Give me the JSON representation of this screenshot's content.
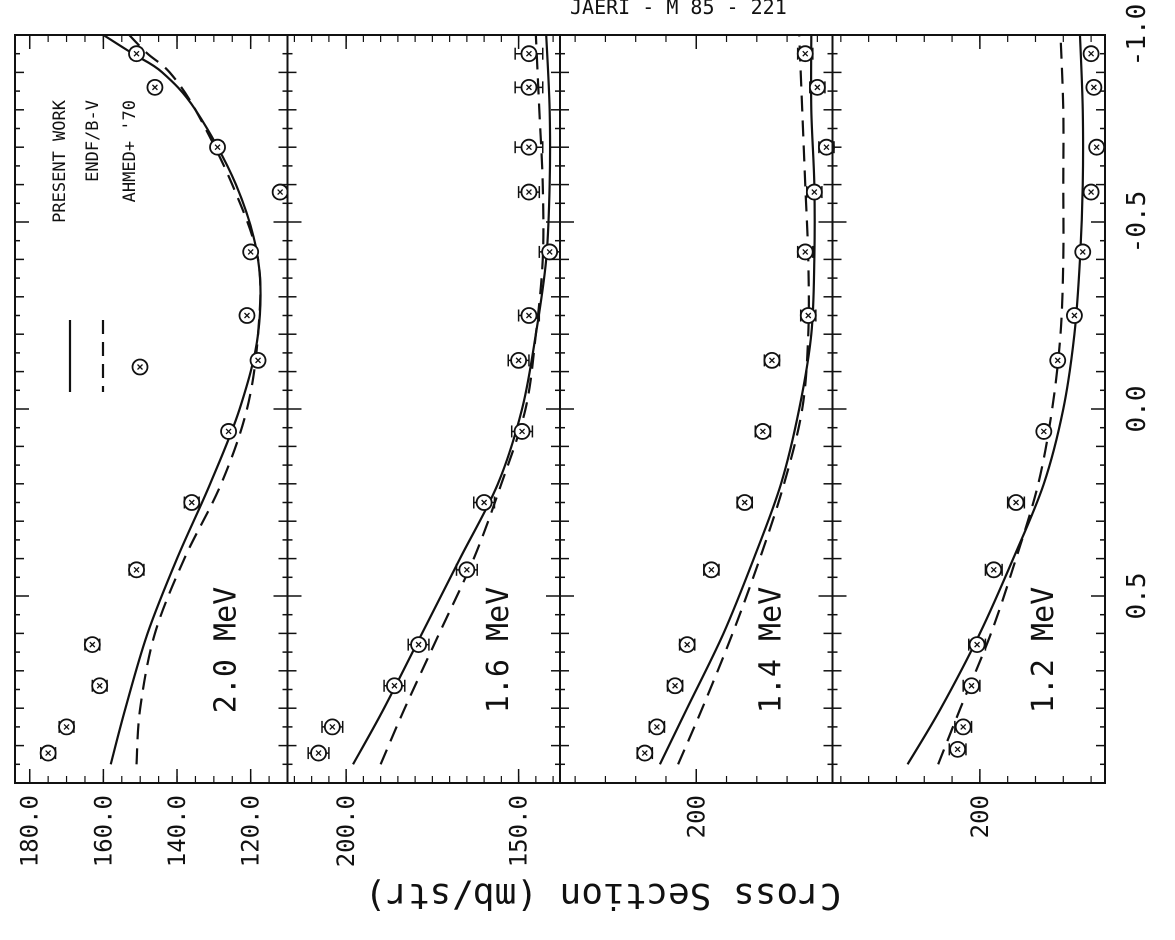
{
  "header": {
    "text": "JAERI - M 85 - 221"
  },
  "figure": {
    "ylabel": "Cross Section (mb/str)",
    "xlabel": "",
    "x_ticks": [
      "-1.0",
      "-0.5",
      "0.0",
      "0.5"
    ],
    "legend": [
      {
        "label": "PRESENT WORK",
        "style": "solid"
      },
      {
        "label": "ENDF/B-V",
        "style": "dashed"
      },
      {
        "label": "AHMED+ '70",
        "style": "marker"
      }
    ],
    "colors": {
      "ink": "#111111",
      "background": "#ffffff"
    }
  },
  "chart_data": [
    {
      "type": "line",
      "panel_label": "2.0 MeV",
      "x_range": [
        -1.0,
        1.0
      ],
      "y_range": [
        110,
        184
      ],
      "y_ticks": [
        "180.0",
        "160.0",
        "140.0",
        "120.0"
      ],
      "series": [
        {
          "name": "PRESENT WORK",
          "style": "solid",
          "x": [
            0.95,
            0.8,
            0.6,
            0.4,
            0.2,
            0.0,
            -0.2,
            -0.4,
            -0.6,
            -0.8,
            -0.9,
            -0.95,
            -1.0
          ],
          "y": [
            158,
            154,
            148,
            140,
            131,
            123,
            118,
            118,
            124,
            135,
            144,
            152,
            160
          ]
        },
        {
          "name": "ENDF/B-V",
          "style": "dashed",
          "x": [
            0.95,
            0.8,
            0.6,
            0.4,
            0.2,
            0.0,
            -0.2,
            -0.4,
            -0.6,
            -0.8,
            -0.9,
            -0.95,
            -1.0
          ],
          "y": [
            151,
            150,
            146,
            138,
            128,
            121,
            118,
            118,
            125,
            135,
            142,
            148,
            153
          ]
        },
        {
          "name": "AHMED+ '70",
          "style": "marker",
          "x": [
            0.92,
            0.85,
            0.74,
            0.63,
            0.43,
            0.25,
            0.06,
            -0.13,
            -0.25,
            -0.42,
            -0.58,
            -0.7,
            -0.86,
            -0.95
          ],
          "y": [
            175,
            170,
            161,
            163,
            151,
            136,
            126,
            118,
            121,
            120,
            112,
            129,
            146,
            151
          ],
          "err": [
            2,
            2,
            2,
            2,
            2,
            2,
            1.5,
            1.5,
            1.5,
            1.5,
            1.5,
            1.5,
            1.5,
            1.5
          ]
        }
      ]
    },
    {
      "type": "line",
      "panel_label": "1.6 MeV",
      "x_range": [
        -1.0,
        1.0
      ],
      "y_range": [
        138,
        217
      ],
      "y_ticks": [
        "200.0",
        "150.0"
      ],
      "series": [
        {
          "name": "PRESENT WORK",
          "style": "solid",
          "x": [
            0.95,
            0.8,
            0.6,
            0.4,
            0.2,
            0.0,
            -0.2,
            -0.4,
            -0.6,
            -0.8,
            -1.0
          ],
          "y": [
            198,
            189,
            178,
            167,
            156,
            149,
            145,
            142,
            141,
            141,
            142
          ]
        },
        {
          "name": "ENDF/B-V",
          "style": "dashed",
          "x": [
            0.95,
            0.8,
            0.6,
            0.4,
            0.2,
            0.0,
            -0.2,
            -0.4,
            -0.6,
            -0.8,
            -1.0
          ],
          "y": [
            190,
            183,
            173,
            163,
            155,
            148,
            145,
            143,
            143,
            144,
            145
          ]
        },
        {
          "name": "AHMED+ '70",
          "style": "marker",
          "x": [
            0.92,
            0.85,
            0.74,
            0.63,
            0.43,
            0.25,
            0.06,
            -0.13,
            -0.25,
            -0.42,
            -0.58,
            -0.7,
            -0.86,
            -0.95
          ],
          "y": [
            208,
            204,
            186,
            179,
            165,
            160,
            149,
            150,
            147,
            141,
            147,
            147,
            147,
            147
          ],
          "err": [
            3,
            3,
            3,
            3,
            3,
            3,
            3,
            3,
            3,
            3,
            3,
            4,
            4,
            4
          ]
        }
      ]
    },
    {
      "type": "line",
      "panel_label": "1.4 MeV",
      "x_range": [
        -1.0,
        1.0
      ],
      "y_range": [
        155,
        245
      ],
      "y_ticks": [
        "200"
      ],
      "series": [
        {
          "name": "PRESENT WORK",
          "style": "solid",
          "x": [
            0.95,
            0.8,
            0.6,
            0.4,
            0.2,
            0.0,
            -0.2,
            -0.4,
            -0.6,
            -0.8,
            -1.0
          ],
          "y": [
            212,
            203,
            191,
            181,
            172,
            166,
            162,
            161,
            161,
            162,
            162
          ]
        },
        {
          "name": "ENDF/B-V",
          "style": "dashed",
          "x": [
            0.95,
            0.8,
            0.6,
            0.4,
            0.2,
            0.0,
            -0.2,
            -0.4,
            -0.6,
            -0.8,
            -1.0
          ],
          "y": [
            206,
            198,
            188,
            179,
            171,
            165,
            163,
            163,
            164,
            165,
            166
          ]
        },
        {
          "name": "AHMED+ '70",
          "style": "marker",
          "x": [
            0.92,
            0.85,
            0.74,
            0.63,
            0.43,
            0.25,
            0.06,
            -0.13,
            -0.25,
            -0.42,
            -0.58,
            -0.7,
            -0.86,
            -0.95
          ],
          "y": [
            217,
            213,
            207,
            203,
            195,
            184,
            178,
            175,
            163,
            164,
            161,
            157,
            160,
            164
          ],
          "err": [
            2.5,
            2.5,
            2.5,
            2.5,
            2.5,
            2.5,
            2.5,
            2.5,
            2.5,
            2.5,
            2.5,
            2.5,
            2.5,
            2.5
          ]
        }
      ]
    },
    {
      "type": "line",
      "panel_label": "1.2 MeV",
      "x_range": [
        -1.0,
        1.0
      ],
      "y_range": [
        155,
        253
      ],
      "y_ticks": [
        "200"
      ],
      "series": [
        {
          "name": "PRESENT WORK",
          "style": "solid",
          "x": [
            0.95,
            0.8,
            0.6,
            0.4,
            0.2,
            0.0,
            -0.2,
            -0.4,
            -0.6,
            -0.8,
            -1.0
          ],
          "y": [
            226,
            214,
            200,
            188,
            177,
            170,
            166,
            164,
            163,
            163,
            164
          ]
        },
        {
          "name": "ENDF/B-V",
          "style": "dashed",
          "x": [
            0.95,
            0.8,
            0.6,
            0.4,
            0.2,
            0.0,
            -0.2,
            -0.4,
            -0.6,
            -0.8,
            -1.0
          ],
          "y": [
            215,
            207,
            196,
            187,
            179,
            174,
            171,
            170,
            170,
            170,
            171
          ]
        },
        {
          "name": "AHMED+ '70",
          "style": "marker",
          "x": [
            0.91,
            0.85,
            0.74,
            0.63,
            0.43,
            0.25,
            0.06,
            -0.13,
            -0.25,
            -0.42,
            -0.58,
            -0.7,
            -0.86,
            -0.95
          ],
          "y": [
            208,
            206,
            203,
            201,
            195,
            187,
            177,
            172,
            166,
            163,
            160,
            158,
            159,
            160
          ],
          "err": [
            3,
            3,
            3,
            3,
            3,
            3,
            2,
            2,
            2,
            2,
            2,
            2,
            2,
            2
          ]
        }
      ]
    }
  ]
}
